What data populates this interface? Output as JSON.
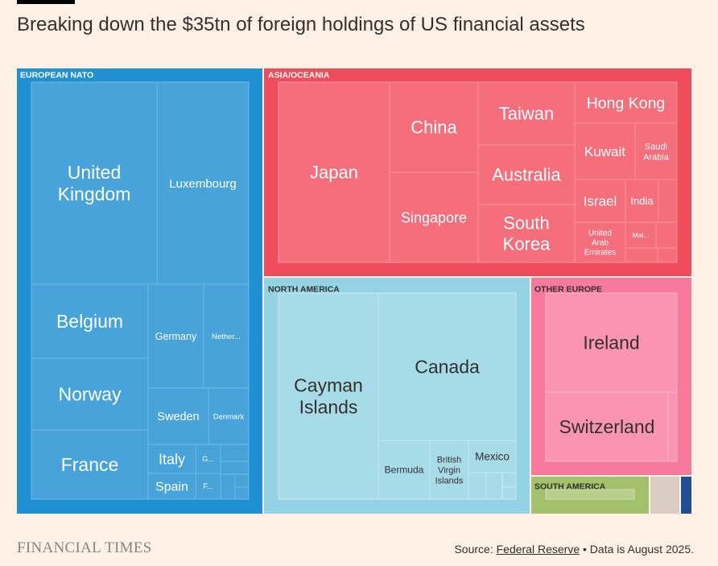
{
  "title": "Breaking down the $35tn of foreign holdings of US financial assets",
  "footer": {
    "logo": "FINANCIAL TIMES",
    "source_prefix": "Source:",
    "source_link": "Federal Reserve",
    "note": "• Data is August 2025."
  },
  "colors": {
    "background": "#fff1e5",
    "european_nato": "#2190d2",
    "asia_oceania": "#ef4c5c",
    "north_america": "#93d3e3",
    "other_europe": "#f7799c",
    "south_america": "#a3c06b",
    "other_1": "#d8ccc3",
    "other_2": "#1d4f91"
  },
  "chart_data": {
    "type": "treemap",
    "title": "Breaking down the $35tn of foreign holdings of US financial assets",
    "groups": [
      {
        "name": "EUROPEAN NATO",
        "items": [
          "United Kingdom",
          "Luxembourg",
          "Belgium",
          "Germany",
          "Nether...",
          "Norway",
          "Sweden",
          "Denmark",
          "France",
          "Italy",
          "G...",
          "Spain",
          "F..."
        ]
      },
      {
        "name": "ASIA/OCEANIA",
        "items": [
          "Japan",
          "China",
          "Singapore",
          "Taiwan",
          "Australia",
          "South Korea",
          "Hong Kong",
          "Kuwait",
          "Saudi Arabia",
          "Israel",
          "India",
          "United Arab Emirates",
          "Mal..."
        ]
      },
      {
        "name": "NORTH AMERICA",
        "items": [
          "Cayman Islands",
          "Canada",
          "Bermuda",
          "British Virgin Islands",
          "Mexico"
        ]
      },
      {
        "name": "OTHER EUROPE",
        "items": [
          "Ireland",
          "Switzerland"
        ]
      },
      {
        "name": "SOUTH AMERICA",
        "items": []
      }
    ]
  }
}
